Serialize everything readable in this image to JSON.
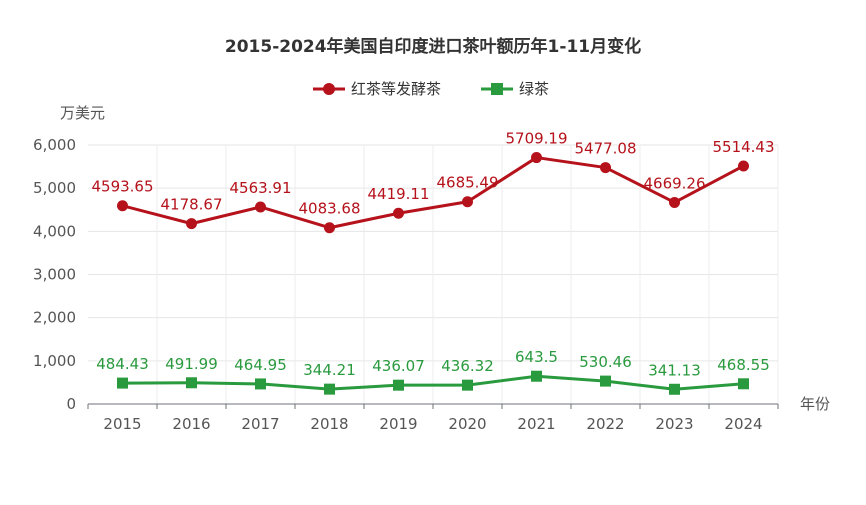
{
  "chart_data": {
    "type": "line",
    "title": "2015-2024年美国自印度进口茶叶额历年1-11月变化",
    "xlabel": "年份",
    "ylabel": "万美元",
    "categories": [
      "2015",
      "2016",
      "2017",
      "2018",
      "2019",
      "2020",
      "2021",
      "2022",
      "2023",
      "2024"
    ],
    "ylim": [
      0,
      6000
    ],
    "yticks": [
      "0",
      "1,000",
      "2,000",
      "3,000",
      "4,000",
      "5,000",
      "6,000"
    ],
    "grid": true,
    "legend_position": "top-center",
    "series": [
      {
        "name": "红茶等发酵茶",
        "color": "#b5121b",
        "marker": "circle",
        "values": [
          4593.65,
          4178.67,
          4563.91,
          4083.68,
          4419.11,
          4685.49,
          5709.19,
          5477.08,
          4669.26,
          5514.43
        ],
        "labels": [
          "4593.65",
          "4178.67",
          "4563.91",
          "4083.68",
          "4419.11",
          "4685.49",
          "5709.19",
          "5477.08",
          "4669.26",
          "5514.43"
        ]
      },
      {
        "name": "绿茶",
        "color": "#2a9a3e",
        "marker": "square",
        "values": [
          484.43,
          491.99,
          464.95,
          344.21,
          436.07,
          436.32,
          643.5,
          530.46,
          341.13,
          468.55
        ],
        "labels": [
          "484.43",
          "491.99",
          "464.95",
          "344.21",
          "436.07",
          "436.32",
          "643.5",
          "530.46",
          "341.13",
          "468.55"
        ]
      }
    ]
  }
}
